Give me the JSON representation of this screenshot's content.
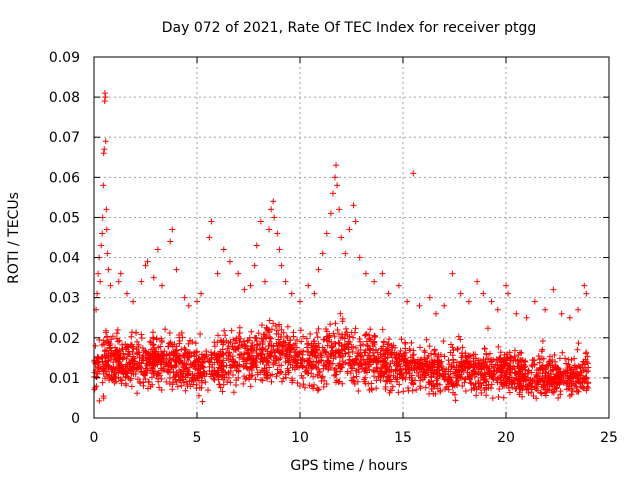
{
  "chart_data": {
    "type": "scatter",
    "title": "Day 072 of 2021, Rate Of TEC Index for receiver ptgg",
    "xlabel": "GPS time / hours",
    "ylabel": "ROTI / TECUs",
    "xlim": [
      0,
      25
    ],
    "ylim": [
      0,
      0.09
    ],
    "xticks": [
      "0",
      "5",
      "10",
      "15",
      "20",
      "25"
    ],
    "yticks": [
      "0",
      "0.01",
      "0.02",
      "0.03",
      "0.04",
      "0.05",
      "0.06",
      "0.07",
      "0.08",
      "0.09"
    ],
    "grid": true,
    "marker": "plus",
    "color": "#ff0000",
    "series": [
      {
        "points": [
          [
            0.1,
            0.027
          ],
          [
            0.15,
            0.031
          ],
          [
            0.2,
            0.036
          ],
          [
            0.25,
            0.04
          ],
          [
            0.3,
            0.034
          ],
          [
            0.35,
            0.043
          ],
          [
            0.4,
            0.046
          ],
          [
            0.42,
            0.05
          ],
          [
            0.45,
            0.058
          ],
          [
            0.47,
            0.066
          ],
          [
            0.5,
            0.067
          ],
          [
            0.52,
            0.079
          ],
          [
            0.53,
            0.081
          ],
          [
            0.55,
            0.08
          ],
          [
            0.57,
            0.069
          ],
          [
            0.6,
            0.052
          ],
          [
            0.62,
            0.047
          ],
          [
            0.65,
            0.041
          ],
          [
            0.7,
            0.037
          ],
          [
            0.8,
            0.033
          ],
          [
            1.2,
            0.034
          ],
          [
            1.3,
            0.036
          ],
          [
            1.6,
            0.031
          ],
          [
            1.9,
            0.029
          ],
          [
            2.3,
            0.034
          ],
          [
            2.5,
            0.038
          ],
          [
            2.6,
            0.039
          ],
          [
            2.9,
            0.035
          ],
          [
            3.1,
            0.042
          ],
          [
            3.3,
            0.033
          ],
          [
            3.7,
            0.044
          ],
          [
            3.8,
            0.047
          ],
          [
            4.0,
            0.037
          ],
          [
            4.4,
            0.03
          ],
          [
            4.6,
            0.028
          ],
          [
            5.0,
            0.029
          ],
          [
            5.2,
            0.031
          ],
          [
            5.6,
            0.045
          ],
          [
            5.7,
            0.049
          ],
          [
            6.0,
            0.036
          ],
          [
            6.3,
            0.042
          ],
          [
            6.6,
            0.039
          ],
          [
            7.0,
            0.036
          ],
          [
            7.3,
            0.032
          ],
          [
            7.6,
            0.033
          ],
          [
            7.8,
            0.038
          ],
          [
            7.9,
            0.043
          ],
          [
            8.1,
            0.049
          ],
          [
            8.3,
            0.034
          ],
          [
            8.5,
            0.047
          ],
          [
            8.6,
            0.052
          ],
          [
            8.7,
            0.054
          ],
          [
            8.75,
            0.05
          ],
          [
            8.9,
            0.046
          ],
          [
            9.0,
            0.042
          ],
          [
            9.1,
            0.038
          ],
          [
            9.3,
            0.034
          ],
          [
            9.6,
            0.031
          ],
          [
            10.0,
            0.029
          ],
          [
            10.4,
            0.033
          ],
          [
            10.7,
            0.031
          ],
          [
            10.9,
            0.037
          ],
          [
            11.1,
            0.041
          ],
          [
            11.3,
            0.046
          ],
          [
            11.5,
            0.051
          ],
          [
            11.6,
            0.056
          ],
          [
            11.7,
            0.06
          ],
          [
            11.75,
            0.063
          ],
          [
            11.8,
            0.058
          ],
          [
            11.9,
            0.052
          ],
          [
            12.0,
            0.045
          ],
          [
            12.2,
            0.041
          ],
          [
            12.4,
            0.047
          ],
          [
            12.6,
            0.053
          ],
          [
            12.7,
            0.049
          ],
          [
            12.9,
            0.04
          ],
          [
            13.2,
            0.036
          ],
          [
            13.6,
            0.034
          ],
          [
            14.0,
            0.036
          ],
          [
            14.3,
            0.031
          ],
          [
            14.8,
            0.033
          ],
          [
            15.2,
            0.029
          ],
          [
            15.5,
            0.061
          ],
          [
            15.8,
            0.028
          ],
          [
            16.3,
            0.03
          ],
          [
            16.6,
            0.026
          ],
          [
            17.0,
            0.028
          ],
          [
            17.4,
            0.036
          ],
          [
            17.8,
            0.031
          ],
          [
            18.2,
            0.029
          ],
          [
            18.6,
            0.034
          ],
          [
            18.9,
            0.031
          ],
          [
            19.3,
            0.029
          ],
          [
            19.6,
            0.027
          ],
          [
            20.0,
            0.033
          ],
          [
            20.1,
            0.031
          ],
          [
            20.5,
            0.026
          ],
          [
            21.0,
            0.025
          ],
          [
            21.4,
            0.029
          ],
          [
            21.9,
            0.027
          ],
          [
            22.3,
            0.032
          ],
          [
            22.7,
            0.026
          ],
          [
            23.1,
            0.025
          ],
          [
            23.5,
            0.027
          ],
          [
            23.8,
            0.033
          ],
          [
            23.9,
            0.031
          ]
        ]
      }
    ],
    "dense_band": {
      "description_free": true,
      "profile": [
        [
          0.0,
          0.004,
          0.02
        ],
        [
          0.5,
          0.004,
          0.024
        ],
        [
          1.0,
          0.005,
          0.022
        ],
        [
          2.0,
          0.005,
          0.022
        ],
        [
          3.0,
          0.005,
          0.023
        ],
        [
          4.0,
          0.005,
          0.022
        ],
        [
          5.0,
          0.004,
          0.021
        ],
        [
          6.0,
          0.005,
          0.022
        ],
        [
          7.0,
          0.005,
          0.023
        ],
        [
          8.0,
          0.005,
          0.026
        ],
        [
          9.0,
          0.005,
          0.028
        ],
        [
          10.0,
          0.005,
          0.024
        ],
        [
          11.0,
          0.005,
          0.025
        ],
        [
          12.0,
          0.006,
          0.028
        ],
        [
          13.0,
          0.005,
          0.024
        ],
        [
          14.0,
          0.005,
          0.022
        ],
        [
          15.0,
          0.005,
          0.021
        ],
        [
          16.0,
          0.004,
          0.02
        ],
        [
          17.0,
          0.004,
          0.019
        ],
        [
          18.0,
          0.004,
          0.02
        ],
        [
          19.0,
          0.004,
          0.019
        ],
        [
          20.0,
          0.004,
          0.019
        ],
        [
          21.0,
          0.004,
          0.017
        ],
        [
          22.0,
          0.004,
          0.017
        ],
        [
          23.0,
          0.004,
          0.017
        ],
        [
          24.0,
          0.004,
          0.018
        ]
      ],
      "x_range": [
        0,
        24
      ],
      "count": 2600
    }
  }
}
